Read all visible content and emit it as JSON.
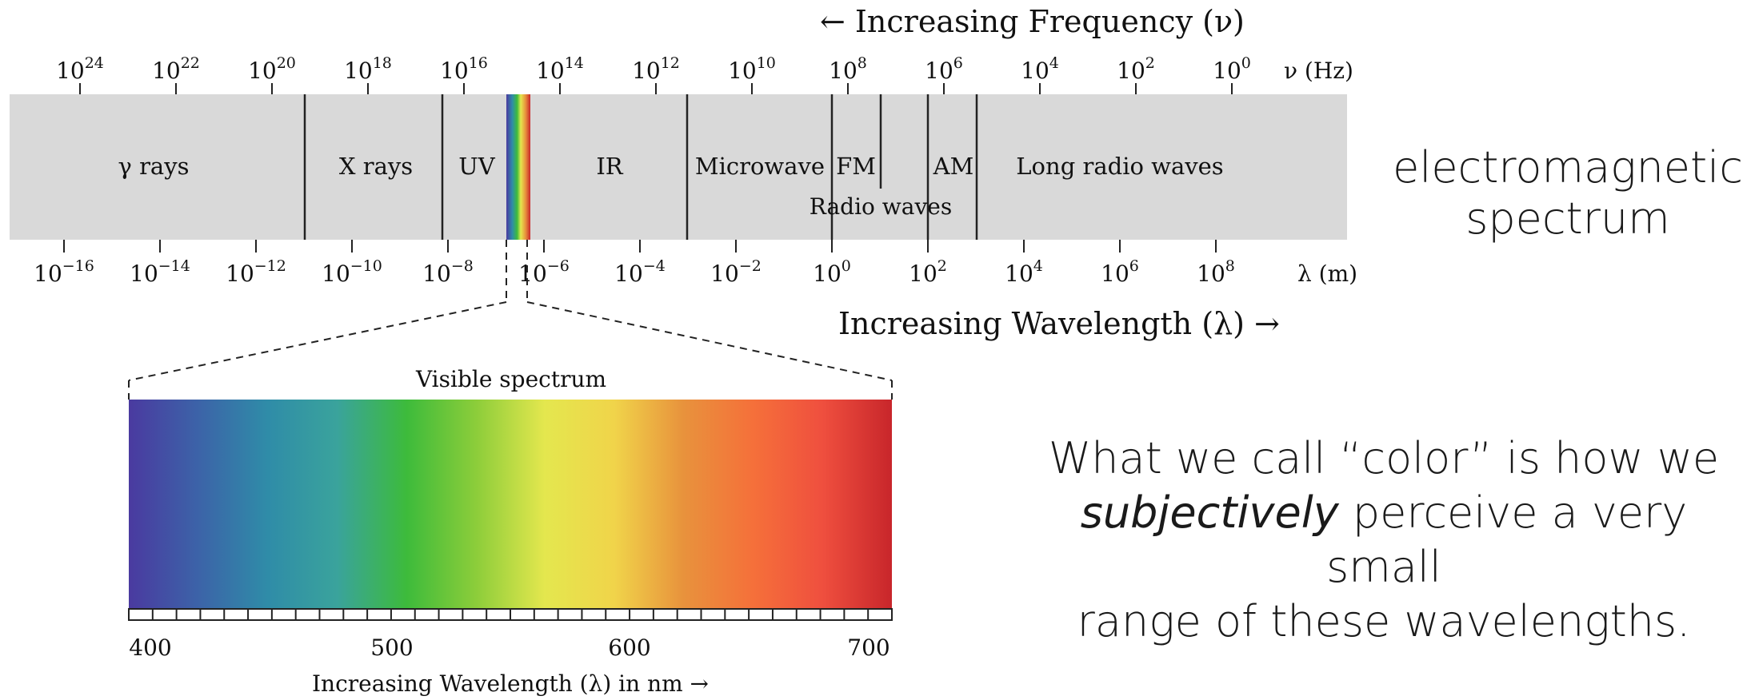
{
  "spectrum": {
    "frequency_heading": "← Increasing Frequency (ν)",
    "wavelength_heading": "Increasing Wavelength (λ) →",
    "frequency_unit": "ν (Hz)",
    "wavelength_unit": "λ (m)",
    "frequency_exponents": [
      "24",
      "22",
      "20",
      "18",
      "16",
      "14",
      "12",
      "10",
      "8",
      "6",
      "4",
      "2",
      "0"
    ],
    "wavelength_exponents": [
      "−16",
      "−14",
      "−12",
      "−10",
      "−8",
      "−6",
      "−4",
      "−2",
      "0",
      "2",
      "4",
      "6",
      "8"
    ],
    "tick_base": "10",
    "bands": [
      {
        "label": "γ rays"
      },
      {
        "label": "X rays"
      },
      {
        "label": "UV"
      },
      {
        "label": "IR"
      },
      {
        "label": "Microwave"
      },
      {
        "label": "FM"
      },
      {
        "label": "AM"
      },
      {
        "label": "Long radio waves"
      }
    ],
    "radio_group_label": "Radio waves",
    "band_color": "#d9d9d9"
  },
  "visible": {
    "title": "Visible spectrum",
    "axis_label": "Increasing Wavelength (λ) in nm →",
    "tick_labels": [
      "400",
      "500",
      "600",
      "700"
    ],
    "gradient_colors": [
      "#4a3aa0",
      "#3c63a8",
      "#2f8ca8",
      "#3aa39c",
      "#3dbb3b",
      "#8ccd3a",
      "#e4e74e",
      "#f0d44a",
      "#e8923c",
      "#f5703a",
      "#ef4f3e",
      "#c8262b"
    ]
  },
  "side": {
    "title_line1": "electromagnetic",
    "title_line2": "spectrum",
    "note_part1": "What we call “color” is how we",
    "note_emphasis": "subjectively",
    "note_part2": "perceive a very small",
    "note_part3": "range of these wavelengths."
  }
}
